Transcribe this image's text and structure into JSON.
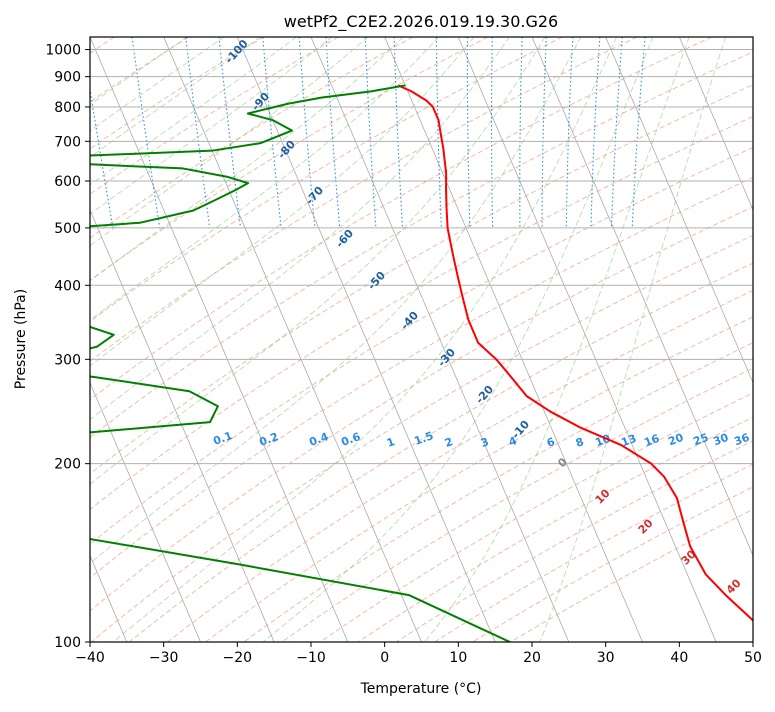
{
  "chart_data": {
    "type": "line",
    "title": "wetPf2_C2E2.2026.019.19.30.G26",
    "xlabel": "Temperature (°C)",
    "ylabel": "Pressure (hPa)",
    "xlim": [
      -40,
      50
    ],
    "ylim": [
      1050,
      100
    ],
    "yscale": "log",
    "x_ticks": [
      -40,
      -30,
      -20,
      -10,
      0,
      10,
      20,
      30,
      40,
      50
    ],
    "x_tick_labels": [
      "−40",
      "−30",
      "−20",
      "−10",
      "0",
      "10",
      "20",
      "30",
      "40",
      "50"
    ],
    "y_ticks": [
      1000,
      900,
      800,
      700,
      600,
      500,
      400,
      300,
      200,
      100
    ],
    "y_tick_labels": [
      "1000",
      "900",
      "800",
      "700",
      "600",
      "500",
      "400",
      "300",
      "200",
      "100"
    ],
    "grid": true,
    "series": [
      {
        "color": "#ff0000",
        "points": [
          [
            100,
            18.0
          ],
          [
            110,
            16.0
          ],
          [
            120,
            14.0
          ],
          [
            130,
            12.5
          ],
          [
            145,
            12.0
          ],
          [
            160,
            12.5
          ],
          [
            175,
            13.0
          ],
          [
            190,
            12.5
          ],
          [
            200,
            11.5
          ],
          [
            215,
            8.5
          ],
          [
            230,
            4.0
          ],
          [
            245,
            0.8
          ],
          [
            260,
            -1.5
          ],
          [
            280,
            -2.5
          ],
          [
            300,
            -3.5
          ],
          [
            320,
            -5.0
          ],
          [
            350,
            -5.0
          ],
          [
            380,
            -4.5
          ],
          [
            410,
            -4.0
          ],
          [
            440,
            -3.5
          ],
          [
            470,
            -3.0
          ],
          [
            500,
            -2.5
          ],
          [
            540,
            -1.5
          ],
          [
            580,
            -0.5
          ],
          [
            620,
            0.5
          ],
          [
            650,
            1.0
          ],
          [
            680,
            1.5
          ],
          [
            720,
            2.0
          ],
          [
            760,
            2.5
          ],
          [
            800,
            2.5
          ],
          [
            820,
            2.0
          ],
          [
            850,
            0.5
          ],
          [
            870,
            -1.0
          ]
        ]
      },
      {
        "color": "#008000",
        "points": [
          [
            100,
            -18.0
          ],
          [
            120,
            -29.0
          ],
          [
            135,
            -50.0
          ],
          [
            150,
            -70.0
          ],
          [
            165,
            -73.0
          ],
          [
            180,
            -75.0
          ],
          [
            195,
            -77.0
          ],
          [
            210,
            -77.0
          ],
          [
            220,
            -74.0
          ],
          [
            235,
            -46.0
          ],
          [
            250,
            -44.0
          ],
          [
            265,
            -47.0
          ],
          [
            280,
            -59.0
          ],
          [
            290,
            -69.0
          ],
          [
            300,
            -65.0
          ],
          [
            315,
            -57.0
          ],
          [
            330,
            -54.0
          ],
          [
            345,
            -58.0
          ],
          [
            355,
            -61.0
          ],
          [
            368,
            -58.5
          ],
          [
            385,
            -64.0
          ],
          [
            400,
            -65.0
          ],
          [
            420,
            -66.0
          ],
          [
            445,
            -66.0
          ],
          [
            470,
            -65.0
          ],
          [
            490,
            -65.0
          ],
          [
            510,
            -44.0
          ],
          [
            535,
            -36.0
          ],
          [
            560,
            -32.0
          ],
          [
            580,
            -29.0
          ],
          [
            595,
            -27.0
          ],
          [
            610,
            -29.5
          ],
          [
            630,
            -35.0
          ],
          [
            650,
            -59.0
          ],
          [
            660,
            -50.0
          ],
          [
            675,
            -30.0
          ],
          [
            695,
            -23.0
          ],
          [
            730,
            -18.0
          ],
          [
            760,
            -20.0
          ],
          [
            780,
            -23.0
          ],
          [
            810,
            -17.0
          ],
          [
            830,
            -12.0
          ],
          [
            850,
            -5.0
          ],
          [
            870,
            0.0
          ]
        ]
      }
    ],
    "dry_adiabat_labels": [
      "-100",
      "-90",
      "-80",
      "-70",
      "-60",
      "-50",
      "-40",
      "-30",
      "-20",
      "-10"
    ],
    "mixing_ratio_labels": [
      "0.1",
      "0.2",
      "0.4",
      "0.6",
      "1",
      "1.5",
      "2",
      "3",
      "4",
      "6",
      "8",
      "10",
      "13",
      "16",
      "20",
      "25",
      "30",
      "36"
    ],
    "moist_adiabat_labels": [
      "0",
      "10",
      "20",
      "30",
      "40"
    ],
    "colors": {
      "temperature": "#ff0000",
      "dewpoint": "#008000",
      "isotherm": "#888888",
      "dry_adiabat": "#f5a080",
      "moist_adiabat": "#7cc07c",
      "mixing_ratio": "#2b8ce6",
      "dry_label": "#1f5fa0",
      "moist_label": "#d03030",
      "zero_label": "#888888",
      "background_arc": "#d8c0a0"
    }
  }
}
